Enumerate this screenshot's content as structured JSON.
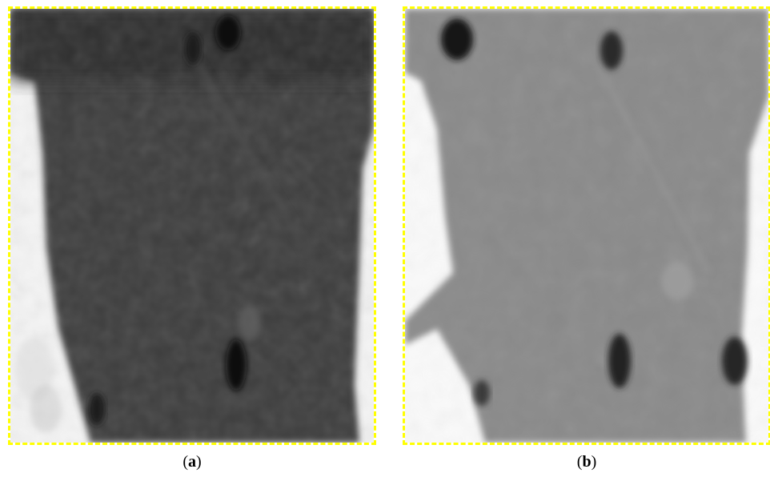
{
  "figure": {
    "panels": [
      {
        "id": "a",
        "caption_open": "(",
        "caption_letter": "a",
        "caption_close": ")",
        "tone": "dark-grayscale",
        "colors": {
          "tissue": "#3c3c3c",
          "background": "#f4f4f4",
          "border": "#ffff00"
        }
      },
      {
        "id": "b",
        "caption_open": "(",
        "caption_letter": "b",
        "caption_close": ")",
        "tone": "mid-grayscale",
        "colors": {
          "tissue": "#8a8a8a",
          "background": "#fafafa",
          "border": "#ffff00"
        }
      }
    ]
  }
}
